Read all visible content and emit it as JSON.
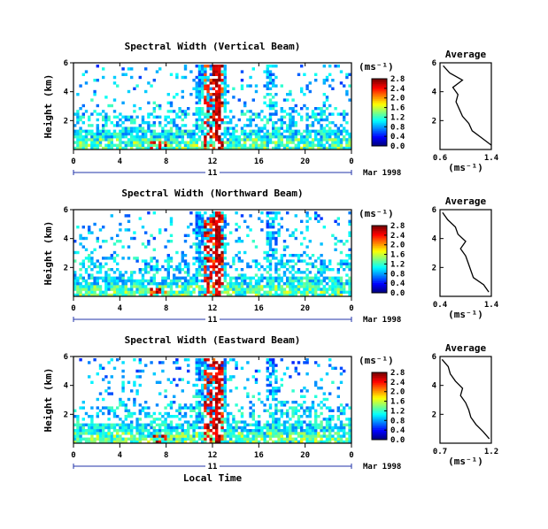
{
  "chart_data": [
    {
      "type": "heatmap",
      "title": "Spectral Width (Vertical Beam)",
      "ylabel": "Height (km)",
      "x_ticks": [
        "0",
        "4",
        "8",
        "12",
        "16",
        "20",
        "0"
      ],
      "y_ticks": [
        "2",
        "4",
        "6"
      ],
      "date_label": "11",
      "month_label": "Mar 1998",
      "colorbar": {
        "unit": "(ms⁻¹)",
        "ticks": [
          "0.0",
          "0.4",
          "0.8",
          "1.2",
          "1.6",
          "2.0",
          "2.4",
          "2.8"
        ]
      },
      "average": {
        "title": "Average",
        "xlabel": "(ms⁻¹)",
        "x_ticks": [
          "0.6",
          "1.4"
        ],
        "y_ticks": [
          "2",
          "4",
          "6"
        ],
        "xlim": [
          0.6,
          1.4
        ],
        "heights": [
          0.3,
          0.8,
          1.3,
          1.8,
          2.3,
          2.8,
          3.3,
          3.8,
          4.3,
          4.8,
          5.3,
          5.8
        ],
        "values": [
          1.4,
          1.25,
          1.1,
          1.05,
          0.95,
          0.9,
          0.85,
          0.88,
          0.8,
          0.95,
          0.75,
          0.65
        ]
      }
    },
    {
      "type": "heatmap",
      "title": "Spectral Width (Northward Beam)",
      "ylabel": "Height (km)",
      "x_ticks": [
        "0",
        "4",
        "8",
        "12",
        "16",
        "20",
        "0"
      ],
      "y_ticks": [
        "2",
        "4",
        "6"
      ],
      "date_label": "11",
      "month_label": "Mar 1998",
      "colorbar": {
        "unit": "(ms⁻¹)",
        "ticks": [
          "0.0",
          "0.4",
          "0.8",
          "1.2",
          "1.6",
          "2.0",
          "2.4",
          "2.8"
        ]
      },
      "average": {
        "title": "Average",
        "xlabel": "(ms⁻¹)",
        "x_ticks": [
          "0.4",
          "1.4"
        ],
        "y_ticks": [
          "2",
          "4",
          "6"
        ],
        "xlim": [
          0.4,
          1.4
        ],
        "heights": [
          0.3,
          0.8,
          1.3,
          1.8,
          2.3,
          2.8,
          3.3,
          3.8,
          4.3,
          4.8,
          5.3,
          5.8
        ],
        "values": [
          1.35,
          1.25,
          1.05,
          1.0,
          0.95,
          0.9,
          0.8,
          0.9,
          0.75,
          0.7,
          0.55,
          0.45
        ]
      }
    },
    {
      "type": "heatmap",
      "title": "Spectral Width (Eastward Beam)",
      "ylabel": "Height (km)",
      "x_ticks": [
        "0",
        "4",
        "8",
        "12",
        "16",
        "20",
        "0"
      ],
      "y_ticks": [
        "2",
        "4",
        "6"
      ],
      "date_label": "11",
      "month_label": "Mar 1998",
      "xlabel": "Local Time",
      "colorbar": {
        "unit": "(ms⁻¹)",
        "ticks": [
          "0.0",
          "0.4",
          "0.8",
          "1.2",
          "1.6",
          "2.0",
          "2.4",
          "2.8"
        ]
      },
      "average": {
        "title": "Average",
        "xlabel": "(ms⁻¹)",
        "x_ticks": [
          "0.7",
          "1.2"
        ],
        "y_ticks": [
          "2",
          "4",
          "6"
        ],
        "xlim": [
          0.7,
          1.2
        ],
        "heights": [
          0.3,
          0.8,
          1.3,
          1.8,
          2.3,
          2.8,
          3.3,
          3.8,
          4.3,
          4.8,
          5.3,
          5.8
        ],
        "values": [
          1.18,
          1.12,
          1.05,
          1.0,
          0.98,
          0.95,
          0.9,
          0.92,
          0.85,
          0.8,
          0.78,
          0.72
        ]
      }
    }
  ]
}
